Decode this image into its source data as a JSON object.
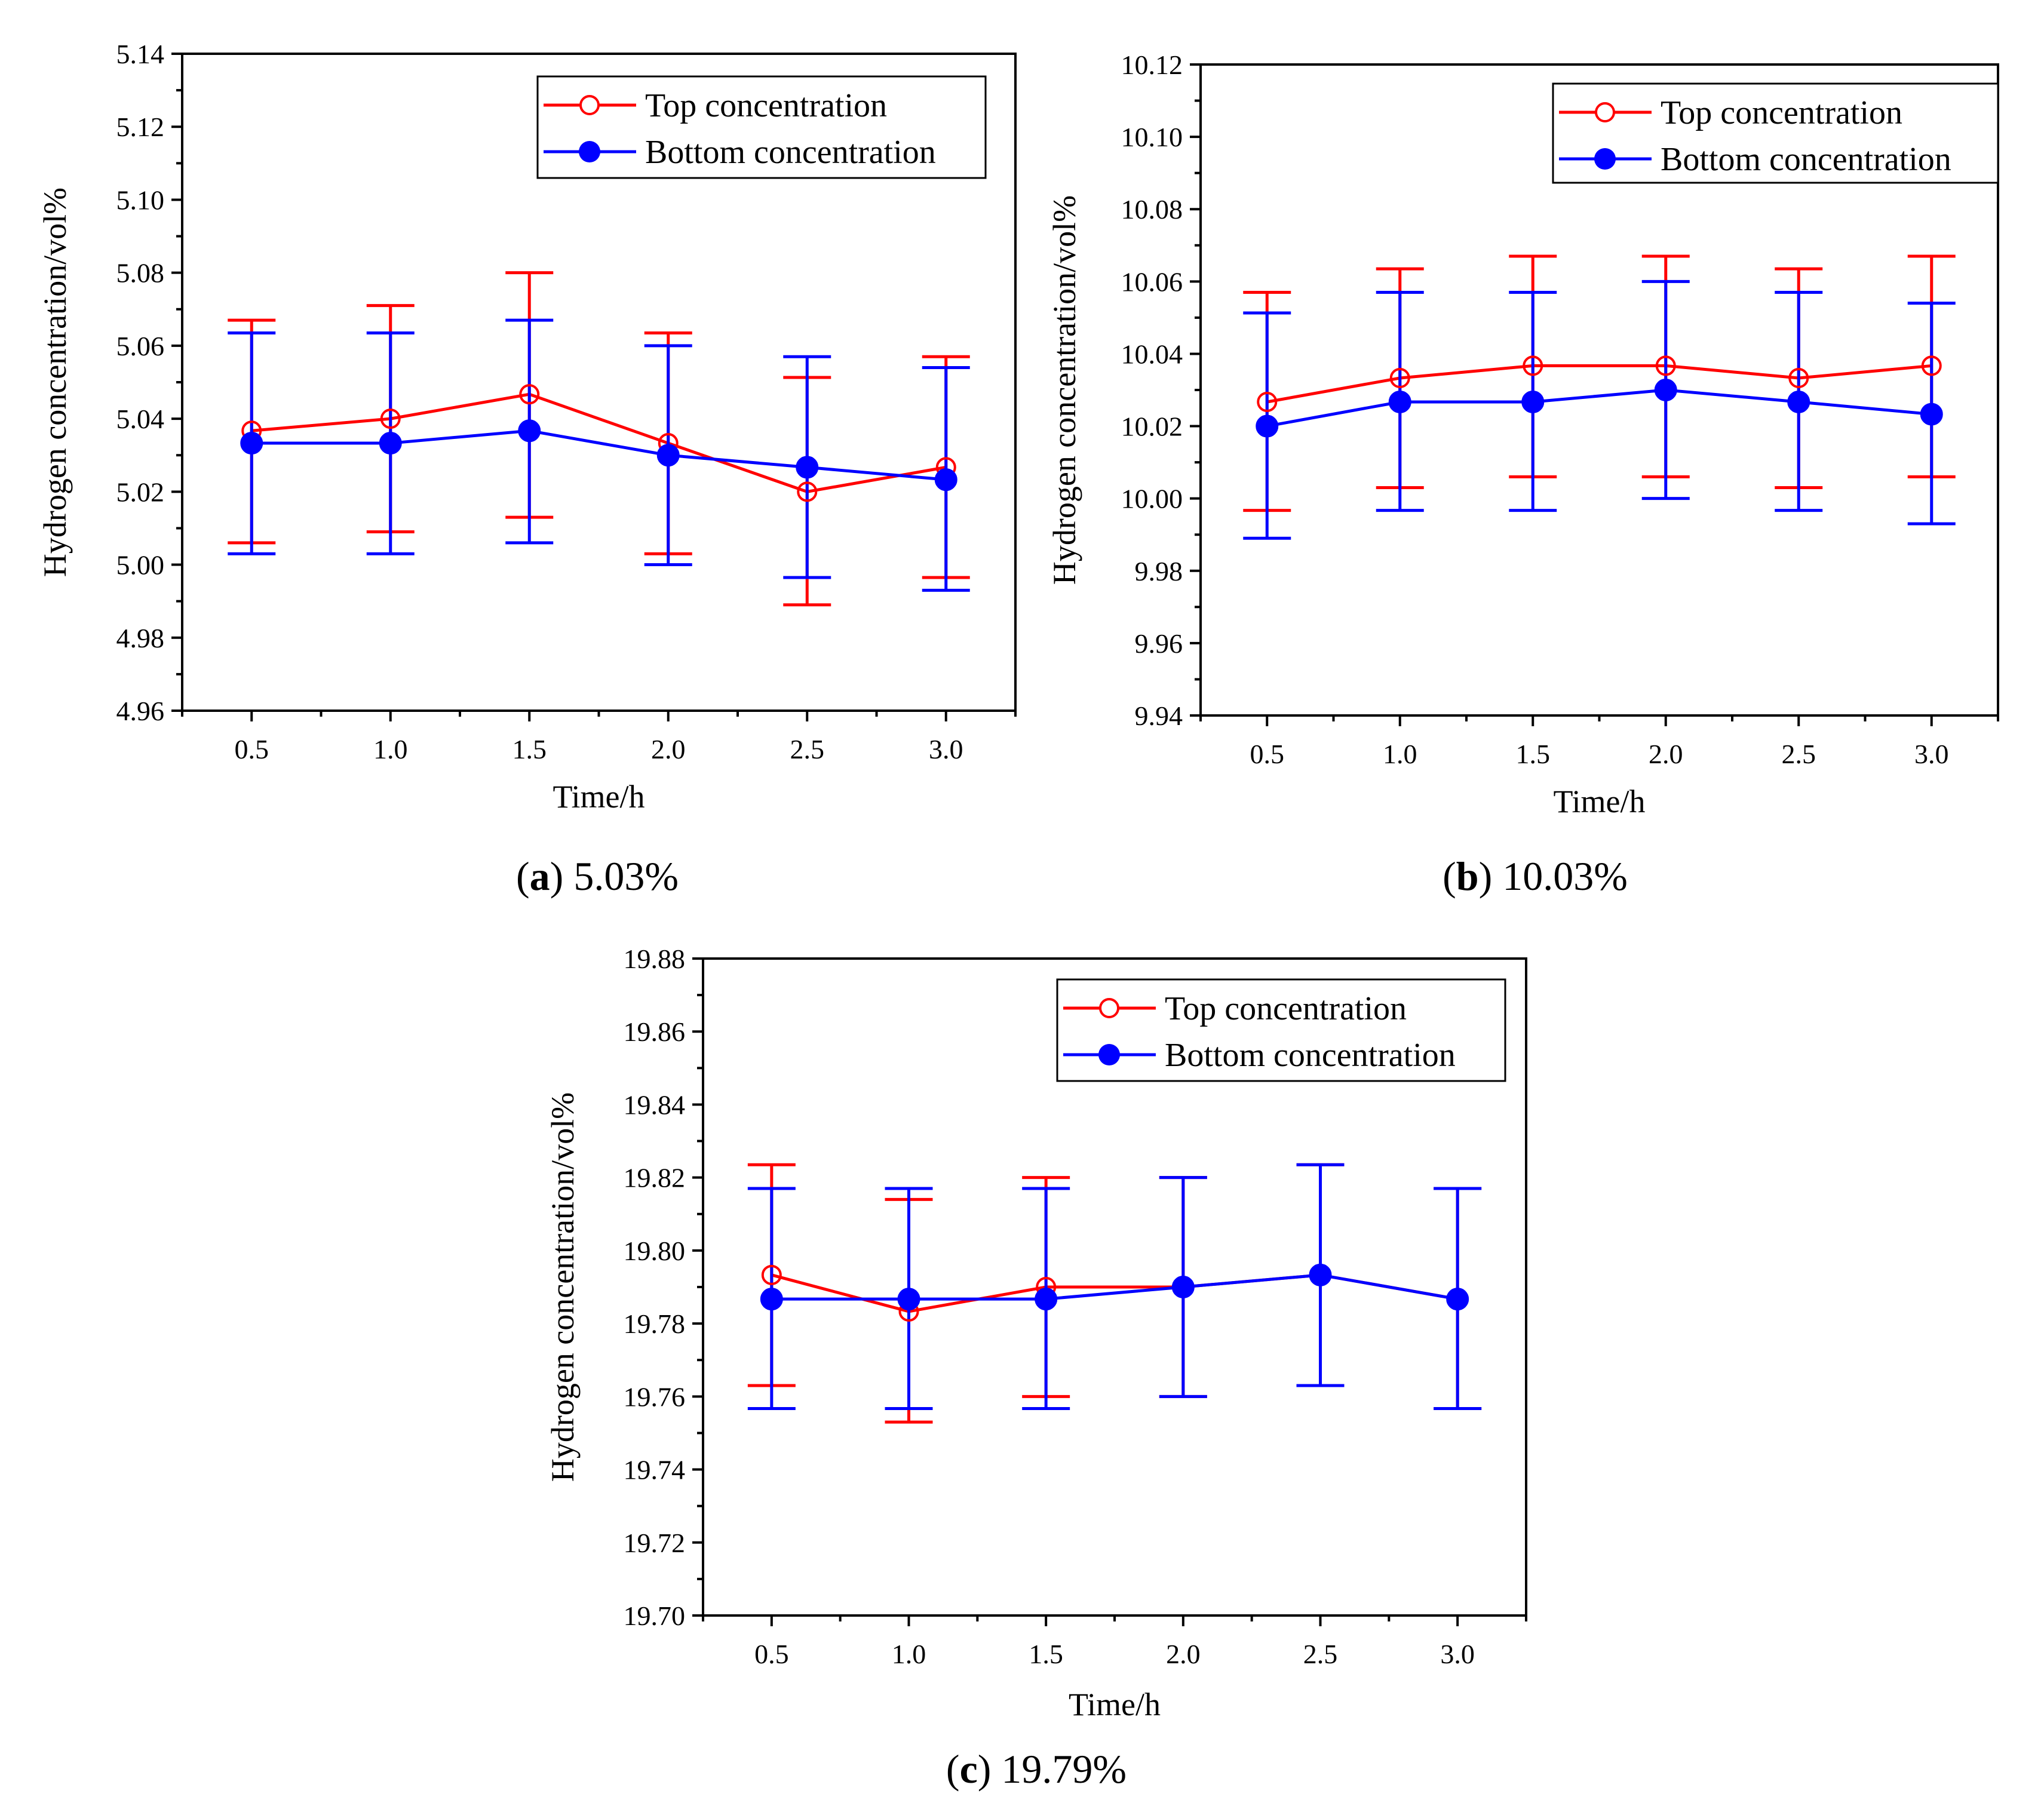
{
  "colors": {
    "top": "#ff0000",
    "bottom": "#0000ff",
    "axis": "#000000"
  },
  "chart_data": [
    {
      "type": "line",
      "caption": {
        "letter": "a",
        "text": "5.03%"
      },
      "xlabel": "Time/h",
      "ylabel": "Hydrogen concentration/vol%",
      "x": [
        0.5,
        1.0,
        1.5,
        2.0,
        2.5,
        3.0
      ],
      "x_tick_labels": [
        "0.5",
        "1.0",
        "1.5",
        "2.0",
        "2.5",
        "3.0"
      ],
      "ylim": [
        4.96,
        5.14
      ],
      "y_ticks": [
        "4.96",
        "4.98",
        "5.00",
        "5.02",
        "5.04",
        "5.06",
        "5.08",
        "5.10",
        "5.12",
        "5.14"
      ],
      "legend_position": "top-right",
      "series": [
        {
          "name": "Top concentration",
          "marker": "open-circle",
          "values": [
            5.0367,
            5.04,
            5.0467,
            5.0333,
            5.02,
            5.0267
          ],
          "err_low": [
            5.006,
            5.009,
            5.013,
            5.003,
            4.989,
            4.9965
          ],
          "err_high": [
            5.067,
            5.071,
            5.08,
            5.0635,
            5.0513,
            5.057
          ]
        },
        {
          "name": "Bottom concentration",
          "marker": "filled-circle",
          "values": [
            5.0333,
            5.0333,
            5.0367,
            5.03,
            5.0267,
            5.0233
          ],
          "err_low": [
            5.003,
            5.003,
            5.006,
            5.0,
            4.9965,
            4.993
          ],
          "err_high": [
            5.0635,
            5.0635,
            5.067,
            5.06,
            5.057,
            5.054
          ]
        }
      ]
    },
    {
      "type": "line",
      "caption": {
        "letter": "b",
        "text": "10.03%"
      },
      "xlabel": "Time/h",
      "ylabel": "Hydrogen concentration/vol%",
      "x": [
        0.5,
        1.0,
        1.5,
        2.0,
        2.5,
        3.0
      ],
      "x_tick_labels": [
        "0.5",
        "1.0",
        "1.5",
        "2.0",
        "2.5",
        "3.0"
      ],
      "ylim": [
        9.94,
        10.12
      ],
      "y_ticks": [
        "9.94",
        "9.96",
        "9.98",
        "10.00",
        "10.02",
        "10.04",
        "10.06",
        "10.08",
        "10.10",
        "10.12"
      ],
      "legend_position": "top-right",
      "series": [
        {
          "name": "Top concentration",
          "marker": "open-circle",
          "values": [
            10.0267,
            10.0333,
            10.0367,
            10.0367,
            10.0333,
            10.0367
          ],
          "err_low": [
            9.9967,
            10.003,
            10.006,
            10.006,
            10.003,
            10.006
          ],
          "err_high": [
            10.057,
            10.0635,
            10.067,
            10.067,
            10.0635,
            10.067
          ]
        },
        {
          "name": "Bottom concentration",
          "marker": "filled-circle",
          "values": [
            10.02,
            10.0267,
            10.0267,
            10.03,
            10.0267,
            10.0233
          ],
          "err_low": [
            9.989,
            9.9967,
            9.9967,
            10.0,
            9.9967,
            9.993
          ],
          "err_high": [
            10.0513,
            10.057,
            10.057,
            10.06,
            10.057,
            10.054
          ]
        }
      ]
    },
    {
      "type": "line",
      "caption": {
        "letter": "c",
        "text": "19.79%"
      },
      "xlabel": "Time/h",
      "ylabel": "Hydrogen concentration/vol%",
      "x": [
        0.5,
        1.0,
        1.5,
        2.0,
        2.5,
        3.0
      ],
      "x_tick_labels": [
        "0.5",
        "1.0",
        "1.5",
        "2.0",
        "2.5",
        "3.0"
      ],
      "ylim": [
        19.7,
        19.88
      ],
      "y_ticks": [
        "19.70",
        "19.72",
        "19.74",
        "19.76",
        "19.78",
        "19.80",
        "19.82",
        "19.84",
        "19.86",
        "19.88"
      ],
      "legend_position": "top-right",
      "series": [
        {
          "name": "Top concentration",
          "marker": "open-circle",
          "values": [
            19.7933,
            19.7833,
            19.79,
            19.79,
            19.7933,
            19.7867
          ],
          "err_low": [
            19.763,
            19.753,
            19.76,
            19.76,
            19.763,
            19.7567
          ],
          "err_high": [
            19.8235,
            19.814,
            19.82,
            19.82,
            19.8235,
            19.817
          ]
        },
        {
          "name": "Bottom concentration",
          "marker": "filled-circle",
          "values": [
            19.7867,
            19.7867,
            19.7867,
            19.79,
            19.7933,
            19.7867
          ],
          "err_low": [
            19.7567,
            19.7567,
            19.7567,
            19.76,
            19.763,
            19.7567
          ],
          "err_high": [
            19.817,
            19.817,
            19.817,
            19.82,
            19.8235,
            19.817
          ]
        }
      ]
    }
  ]
}
